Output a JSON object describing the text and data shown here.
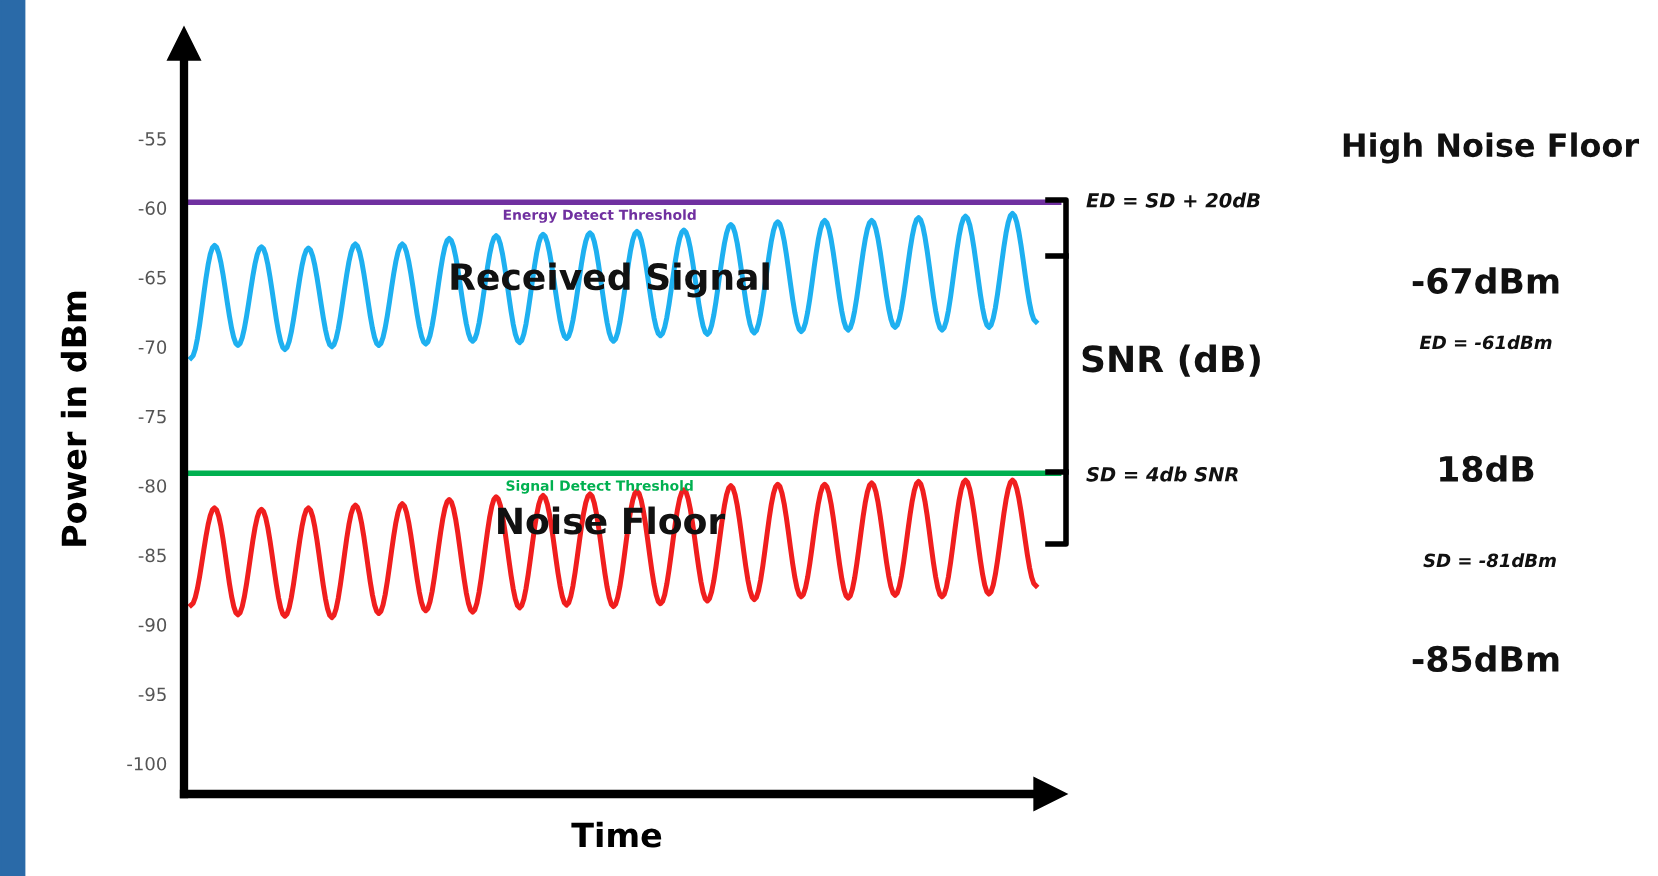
{
  "chart_data": {
    "type": "line",
    "xlabel": "Time",
    "ylabel": "Power in dBm",
    "categories": [
      null,
      null,
      null,
      null,
      null,
      null,
      null,
      null,
      null,
      null,
      null,
      null,
      null,
      null,
      null,
      null,
      null,
      null,
      null,
      null,
      null,
      null,
      null,
      null,
      null,
      null,
      null,
      null,
      null,
      null,
      null,
      null,
      null,
      null,
      null,
      null,
      null
    ],
    "series": [
      {
        "color": "#1eb0f0",
        "values": [
          -70.8,
          -62.7,
          -69.9,
          -62.8,
          -70.2,
          -62.9,
          -70.0,
          -62.6,
          -69.9,
          -62.6,
          -69.8,
          -62.2,
          -69.6,
          -62.0,
          -69.7,
          -61.9,
          -69.4,
          -61.8,
          -69.6,
          -61.7,
          -69.2,
          -61.6,
          -69.1,
          -61.2,
          -69.0,
          -61.0,
          -68.9,
          -60.9,
          -68.8,
          -60.9,
          -68.6,
          -60.7,
          -68.8,
          -60.6,
          -68.6,
          -60.4,
          -68.2
        ]
      },
      {
        "color": "#f01e1e",
        "values": [
          -88.6,
          -81.6,
          -89.3,
          -81.7,
          -89.4,
          -81.6,
          -89.5,
          -81.4,
          -89.2,
          -81.3,
          -89.0,
          -81.0,
          -89.1,
          -80.8,
          -88.8,
          -80.7,
          -88.6,
          -80.6,
          -88.7,
          -80.4,
          -88.5,
          -80.3,
          -88.3,
          -80.0,
          -88.2,
          -79.9,
          -88.0,
          -79.9,
          -88.1,
          -79.8,
          -87.9,
          -79.7,
          -88.0,
          -79.6,
          -87.8,
          -79.6,
          -87.2
        ]
      }
    ],
    "ylim": [
      -102.2,
      -48.2
    ],
    "yticks": [
      -55,
      -60,
      -65,
      -70,
      -75,
      -80,
      -85,
      -90,
      -95,
      -100
    ],
    "tick_labels": "y",
    "grid": false,
    "marker": "none",
    "line_style": "solid",
    "ref_lines": [
      {
        "axis": "y",
        "value": -59.6,
        "label": "Energy Detect Threshold",
        "color": "#7030a0",
        "line_style": "solid"
      },
      {
        "axis": "y",
        "value": -79.1,
        "label": "Signal Detect Threshold",
        "color": "#00b050",
        "line_style": "solid"
      }
    ],
    "annotations": [
      "Received Signal",
      "Noise Floor",
      "ED = SD + 20dB",
      "SNR (dB)",
      "SD = 4db SNR",
      "High Noise Floor",
      "-67dBm",
      "ED = -61dBm",
      "18dB",
      "SD = -81dBm",
      "-85dBm"
    ]
  }
}
